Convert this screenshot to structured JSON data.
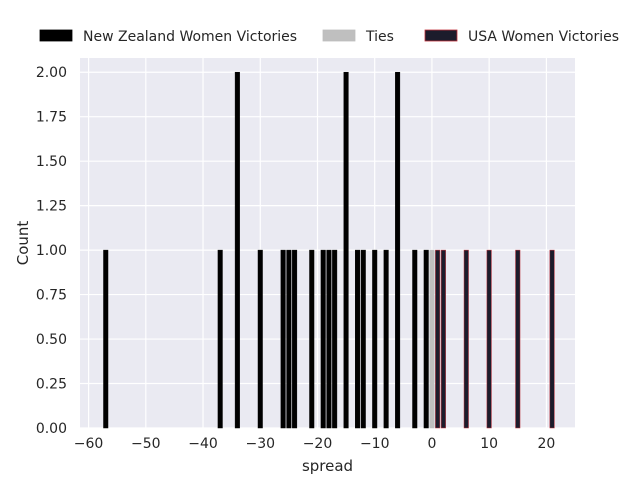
{
  "chart_data": {
    "type": "bar",
    "subtype": "histogram",
    "xlabel": "spread",
    "ylabel": "Count",
    "xlim": [
      -61.5,
      25
    ],
    "ylim": [
      0,
      2.08
    ],
    "xticks": [
      -60,
      -50,
      -40,
      -30,
      -20,
      -10,
      0,
      10,
      20
    ],
    "xtick_labels": [
      "−60",
      "−50",
      "−40",
      "−30",
      "−20",
      "−10",
      "0",
      "10",
      "20"
    ],
    "yticks": [
      0,
      0.25,
      0.5,
      0.75,
      1.0,
      1.25,
      1.5,
      1.75,
      2.0
    ],
    "ytick_labels": [
      "0.00",
      "0.25",
      "0.50",
      "0.75",
      "1.00",
      "1.25",
      "1.50",
      "1.75",
      "2.00"
    ],
    "grid": true,
    "legend_position": "top",
    "series": [
      {
        "name": "New Zealand Women Victories",
        "color": "#000000",
        "edge_color": "#000000",
        "x": [
          -57,
          -37,
          -34,
          -30,
          -26,
          -25,
          -24,
          -21,
          -19,
          -18,
          -17,
          -15,
          -13,
          -12,
          -10,
          -8,
          -6,
          -3,
          -1
        ],
        "values": [
          1,
          1,
          2,
          1,
          1,
          1,
          1,
          1,
          1,
          1,
          1,
          2,
          1,
          1,
          1,
          1,
          2,
          1,
          1
        ]
      },
      {
        "name": "Ties",
        "color": "#bfbfbf",
        "edge_color": "#bfbfbf",
        "x": [
          0
        ],
        "values": [
          1
        ]
      },
      {
        "name": "USA Women Victories",
        "color": "#1c1c2c",
        "edge_color": "#c0303a",
        "x": [
          1,
          2,
          6,
          10,
          15,
          21
        ],
        "values": [
          1,
          1,
          1,
          1,
          1,
          1
        ]
      }
    ]
  }
}
